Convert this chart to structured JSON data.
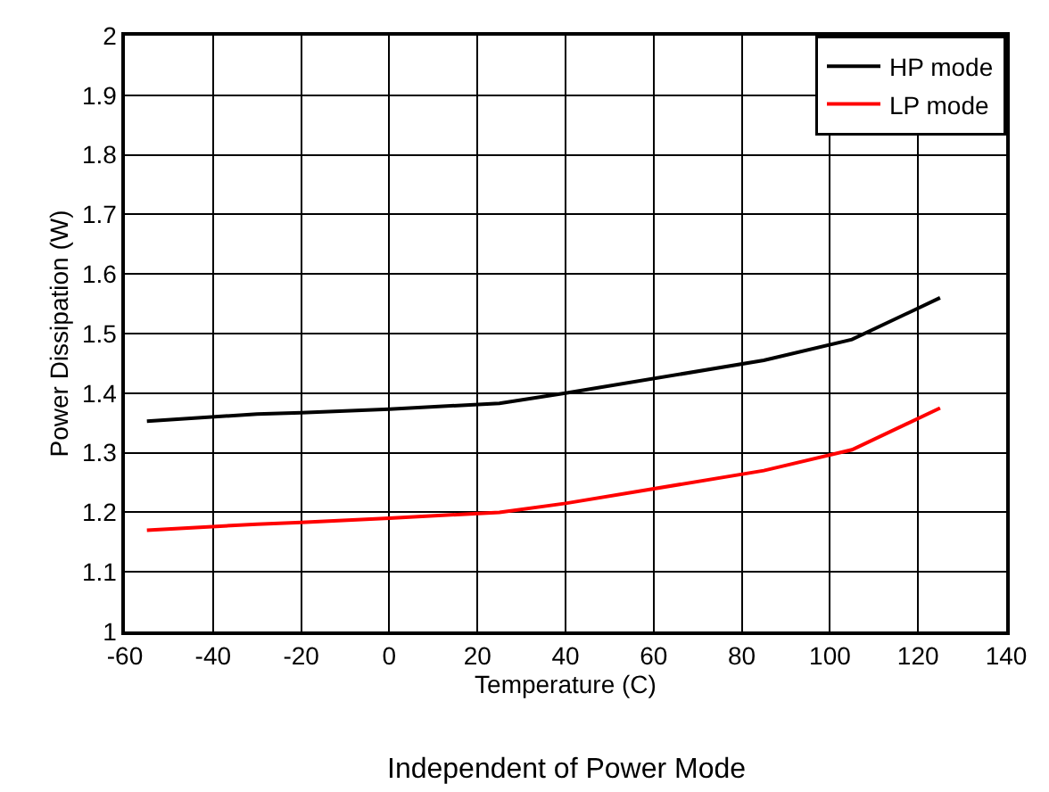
{
  "chart_data": {
    "type": "line",
    "xlabel": "Temperature (C)",
    "ylabel": "Power Dissipation (W)",
    "annotations": [
      "Independent of Power Mode"
    ],
    "x": [
      -55,
      -30,
      -20,
      0,
      25,
      40,
      85,
      105,
      125
    ],
    "series": [
      {
        "name": "HP mode",
        "color": "#000000",
        "values": [
          1.353,
          1.365,
          1.367,
          1.373,
          1.383,
          1.4,
          1.455,
          1.49,
          1.56
        ]
      },
      {
        "name": "LP mode",
        "color": "#ff0000",
        "values": [
          1.17,
          1.18,
          1.183,
          1.19,
          1.2,
          1.215,
          1.27,
          1.305,
          1.375
        ]
      }
    ],
    "xlim": [
      -60,
      140
    ],
    "xticks": [
      -60,
      -40,
      -20,
      0,
      20,
      40,
      60,
      80,
      100,
      120,
      140
    ],
    "ylim": [
      1,
      2
    ],
    "yticks": [
      1,
      1.1,
      1.2,
      1.3,
      1.4,
      1.5,
      1.6,
      1.7,
      1.8,
      1.9,
      2
    ],
    "grid": true,
    "legend": "top right",
    "marker": "none",
    "line_style": "solid"
  }
}
